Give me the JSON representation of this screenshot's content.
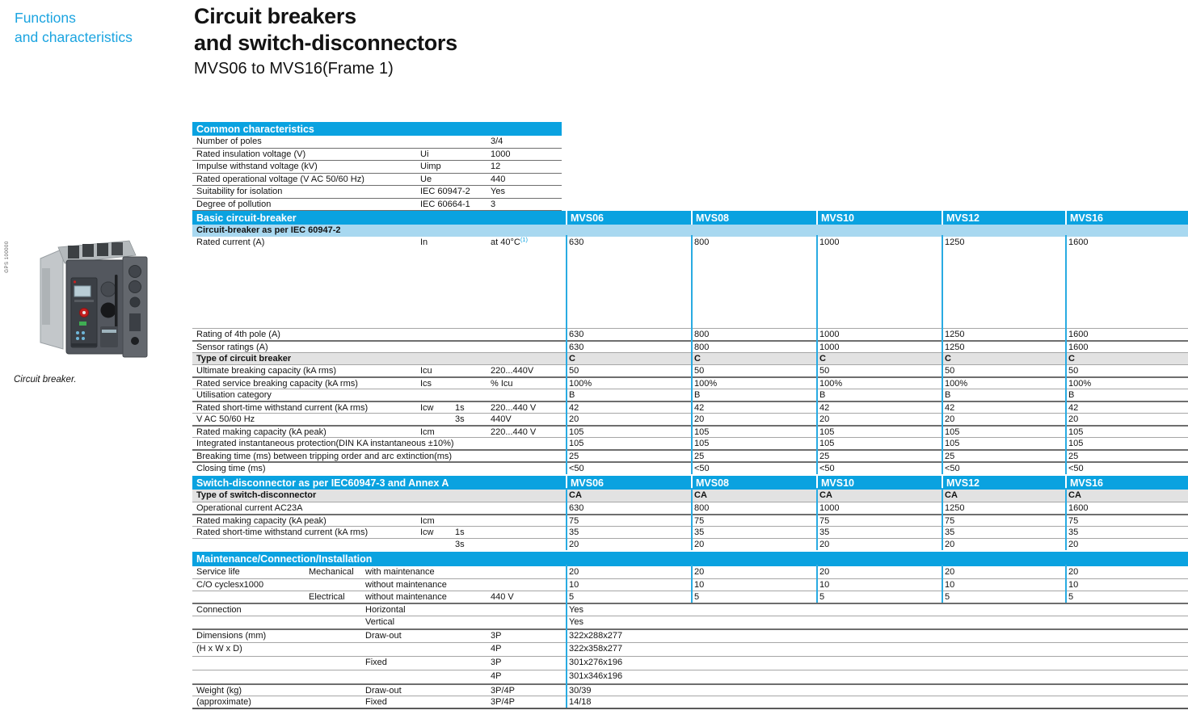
{
  "page": {
    "eyebrow_line1": "Functions",
    "eyebrow_line2": "and characteristics",
    "title_line1": "Circuit breakers",
    "title_line2": "and switch-disconnectors",
    "subtitle": "MVS06 to MVS16(Frame 1)"
  },
  "sidebar": {
    "photo_credit": "GPS 100000",
    "photo_caption": "Circuit breaker."
  },
  "colors": {
    "accent_cyan": "#0aa2e0",
    "band_blue": "#a8d8f0",
    "row_gray": "#e2e2e2",
    "column_separator": "#29abe2"
  },
  "models": [
    "MVS06",
    "MVS08",
    "MVS10",
    "MVS12",
    "MVS16"
  ],
  "common_characteristics": {
    "title": "Common characteristics",
    "rows": [
      {
        "label": "Number of poles",
        "sym": "",
        "value": "3/4"
      },
      {
        "label": "Rated insulation voltage (V)",
        "sym": "Ui",
        "value": "1000"
      },
      {
        "label": "Impulse withstand voltage (kV)",
        "sym": "Uimp",
        "value": "12"
      },
      {
        "label": "Rated operational voltage (V AC 50/60 Hz)",
        "sym": "Ue",
        "value": "440"
      },
      {
        "label": "Suitability for isolation",
        "sym": "IEC 60947-2",
        "value": "Yes"
      },
      {
        "label": "Degree of pollution",
        "sym": "IEC 60664-1",
        "value": "3"
      }
    ]
  },
  "sections": [
    {
      "title": "Basic circuit-breaker",
      "show_models": true,
      "band": "Circuit-breaker as per IEC 60947-2",
      "rows": [
        {
          "label": "Rated current (A)",
          "sym": "In",
          "cond": "at 40°C",
          "cond_sup": "(1)",
          "values": [
            "630",
            "800",
            "1000",
            "1250",
            "1600"
          ],
          "h": 113,
          "border": "none"
        },
        {
          "label": "Rating of 4th pole (A)",
          "values": [
            "630",
            "800",
            "1000",
            "1250",
            "1600"
          ],
          "border": "thin"
        },
        {
          "label": "Sensor ratings (A)",
          "values": [
            "630",
            "800",
            "1000",
            "1250",
            "1600"
          ],
          "border": "thick"
        },
        {
          "label": "Type of circuit breaker",
          "bold": true,
          "gray": true,
          "values": [
            "C",
            "C",
            "C",
            "C",
            "C"
          ],
          "border": "thin"
        },
        {
          "label": "Ultimate breaking capacity (kA rms)",
          "sym": "Icu",
          "cond": "220...440V",
          "values": [
            "50",
            "50",
            "50",
            "50",
            "50"
          ],
          "border": "thin"
        },
        {
          "label": "Rated service breaking capacity (kA rms)",
          "sym": "Ics",
          "cond": "% Icu",
          "values": [
            "100%",
            "100%",
            "100%",
            "100%",
            "100%"
          ],
          "border": "thick"
        },
        {
          "label": "Utilisation category",
          "values": [
            "B",
            "B",
            "B",
            "B",
            "B"
          ],
          "border": "thin"
        },
        {
          "label": "Rated short-time withstand current (kA rms)",
          "sym": "Icw",
          "time": "1s",
          "cond": "220...440 V",
          "values": [
            "42",
            "42",
            "42",
            "42",
            "42"
          ],
          "border": "thick"
        },
        {
          "label": "V AC 50/60 Hz",
          "time": "3s",
          "cond": "440V",
          "values": [
            "20",
            "20",
            "20",
            "20",
            "20"
          ],
          "border": "thin"
        },
        {
          "label": "Rated making capacity (kA peak)",
          "sym": "Icm",
          "cond": "220...440 V",
          "values": [
            "105",
            "105",
            "105",
            "105",
            "105"
          ],
          "border": "thick"
        },
        {
          "label": "Integrated instantaneous protection(DIN KA instantaneous ±10%)",
          "values": [
            "105",
            "105",
            "105",
            "105",
            "105"
          ],
          "border": "thin"
        },
        {
          "label": "Breaking time (ms) between tripping order and arc extinction(ms)",
          "values": [
            "25",
            "25",
            "25",
            "25",
            "25"
          ],
          "border": "thick"
        },
        {
          "label": "Closing time (ms)",
          "values": [
            "<50",
            "<50",
            "<50",
            "<50",
            "<50"
          ],
          "border": "thick",
          "h": 16
        }
      ]
    },
    {
      "title": "Switch-disconnector as per IEC60947-3 and Annex A",
      "show_models": true,
      "rows": [
        {
          "label": "Type of switch-disconnector",
          "bold": true,
          "gray": true,
          "values": [
            "CA",
            "CA",
            "CA",
            "CA",
            "CA"
          ],
          "border": "none"
        },
        {
          "label": "Operational current AC23A",
          "values": [
            "630",
            "800",
            "1000",
            "1250",
            "1600"
          ],
          "border": "thin"
        },
        {
          "label": "Rated making capacity (kA peak)",
          "sym": "Icm",
          "values": [
            "75",
            "75",
            "75",
            "75",
            "75"
          ],
          "border": "thick"
        },
        {
          "label": "Rated short-time withstand current (kA rms)",
          "sym": "Icw",
          "time": "1s",
          "values": [
            "35",
            "35",
            "35",
            "35",
            "35"
          ],
          "border": "thin"
        },
        {
          "time": "3s",
          "values": [
            "20",
            "20",
            "20",
            "20",
            "20"
          ],
          "border": "thin"
        }
      ]
    },
    {
      "title": "Maintenance/Connection/Installation",
      "show_models": false,
      "rows": [
        {
          "label": "Service life",
          "sub1": "Mechanical",
          "sub2": "with maintenance",
          "values": [
            "20",
            "20",
            "20",
            "20",
            "20"
          ],
          "border": "none"
        },
        {
          "label": "C/O cyclesx1000",
          "sub2": "without maintenance",
          "values": [
            "10",
            "10",
            "10",
            "10",
            "10"
          ],
          "border": "thin"
        },
        {
          "sub1": "Electrical",
          "sub2": "without maintenance",
          "cond": "440 V",
          "values": [
            "5",
            "5",
            "5",
            "5",
            "5"
          ],
          "border": "thin"
        },
        {
          "label": "Connection",
          "sub2": "Horizontal",
          "span": "Yes",
          "border": "thick",
          "h": 16
        },
        {
          "sub2": "Vertical",
          "span": "Yes",
          "border": "thin",
          "h": 16
        },
        {
          "label": "Dimensions (mm)",
          "sub2": "Draw-out",
          "cond": "3P",
          "span": "322x288x277",
          "border": "thick",
          "h": 17
        },
        {
          "label": "(H x W x D)",
          "cond": "4P",
          "span": "322x358x277",
          "border": "thin",
          "h": 17
        },
        {
          "sub2": "Fixed",
          "cond": "3P",
          "span": "301x276x196",
          "border": "thin",
          "h": 17
        },
        {
          "cond": "4P",
          "span": "301x346x196",
          "border": "thin",
          "h": 17
        },
        {
          "label": "Weight (kg)",
          "sub2": "Draw-out",
          "cond": "3P/4P",
          "span": "30/39",
          "border": "thick"
        },
        {
          "label": "(approximate)",
          "sub2": "Fixed",
          "cond": "3P/4P",
          "span": "14/18",
          "border": "thin"
        }
      ]
    }
  ]
}
